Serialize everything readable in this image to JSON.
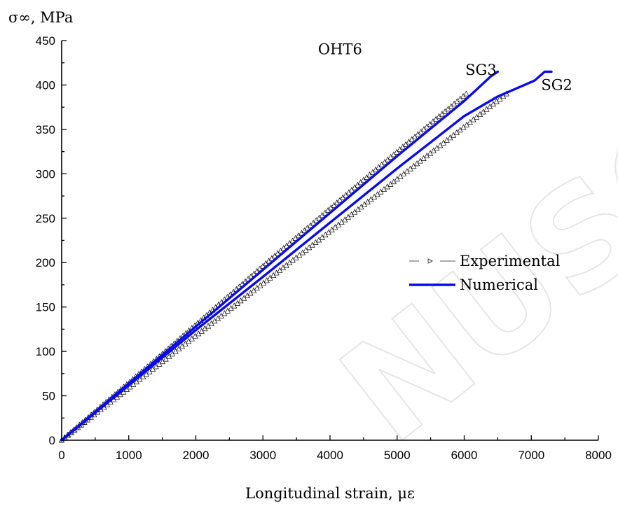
{
  "chart_data": {
    "type": "line",
    "title": "",
    "xlabel": "Longitudinal strain, με",
    "ylabel": "σ∞, MPa",
    "xlim": [
      0,
      8000
    ],
    "ylim": [
      0,
      450
    ],
    "xticks": [
      0,
      1000,
      2000,
      3000,
      4000,
      5000,
      6000,
      7000,
      8000
    ],
    "yticks": [
      0,
      50,
      100,
      150,
      200,
      250,
      300,
      350,
      400,
      450
    ],
    "grid": false,
    "legend": {
      "placement": "center-right",
      "entries": [
        "Experimental",
        "Numerical"
      ]
    },
    "annotations": [
      {
        "text": "OHT6",
        "x": 4150,
        "y": 440
      },
      {
        "text": "SG3",
        "x": 6250,
        "y": 417
      },
      {
        "text": "SG2",
        "x": 7380,
        "y": 400
      }
    ],
    "colors": {
      "numerical": "#0a0af0",
      "experimental": "#000000"
    },
    "series": [
      {
        "name": "Experimental",
        "gauge": "SG3",
        "marker": "triangle-open",
        "x": [
          0,
          1500,
          3000,
          4500,
          6030
        ],
        "y": [
          0,
          97,
          196,
          293,
          390
        ]
      },
      {
        "name": "Experimental",
        "gauge": "SG2",
        "marker": "triangle-open",
        "x": [
          0,
          1650,
          3300,
          4950,
          6630
        ],
        "y": [
          0,
          97,
          194,
          291,
          390
        ]
      },
      {
        "name": "Numerical",
        "gauge": "SG3",
        "x": [
          0,
          1000,
          2000,
          3000,
          4000,
          5000,
          6000,
          6400,
          6500
        ],
        "y": [
          0,
          64,
          128,
          192,
          256,
          320,
          382,
          410,
          415
        ]
      },
      {
        "name": "Numerical",
        "gauge": "SG2",
        "x": [
          0,
          1000,
          2000,
          3000,
          4000,
          5000,
          6000,
          6500,
          7050,
          7200,
          7300
        ],
        "y": [
          0,
          62,
          124,
          184,
          245,
          306,
          365,
          387,
          405,
          415,
          415
        ]
      }
    ],
    "watermark": "NUSCR"
  }
}
